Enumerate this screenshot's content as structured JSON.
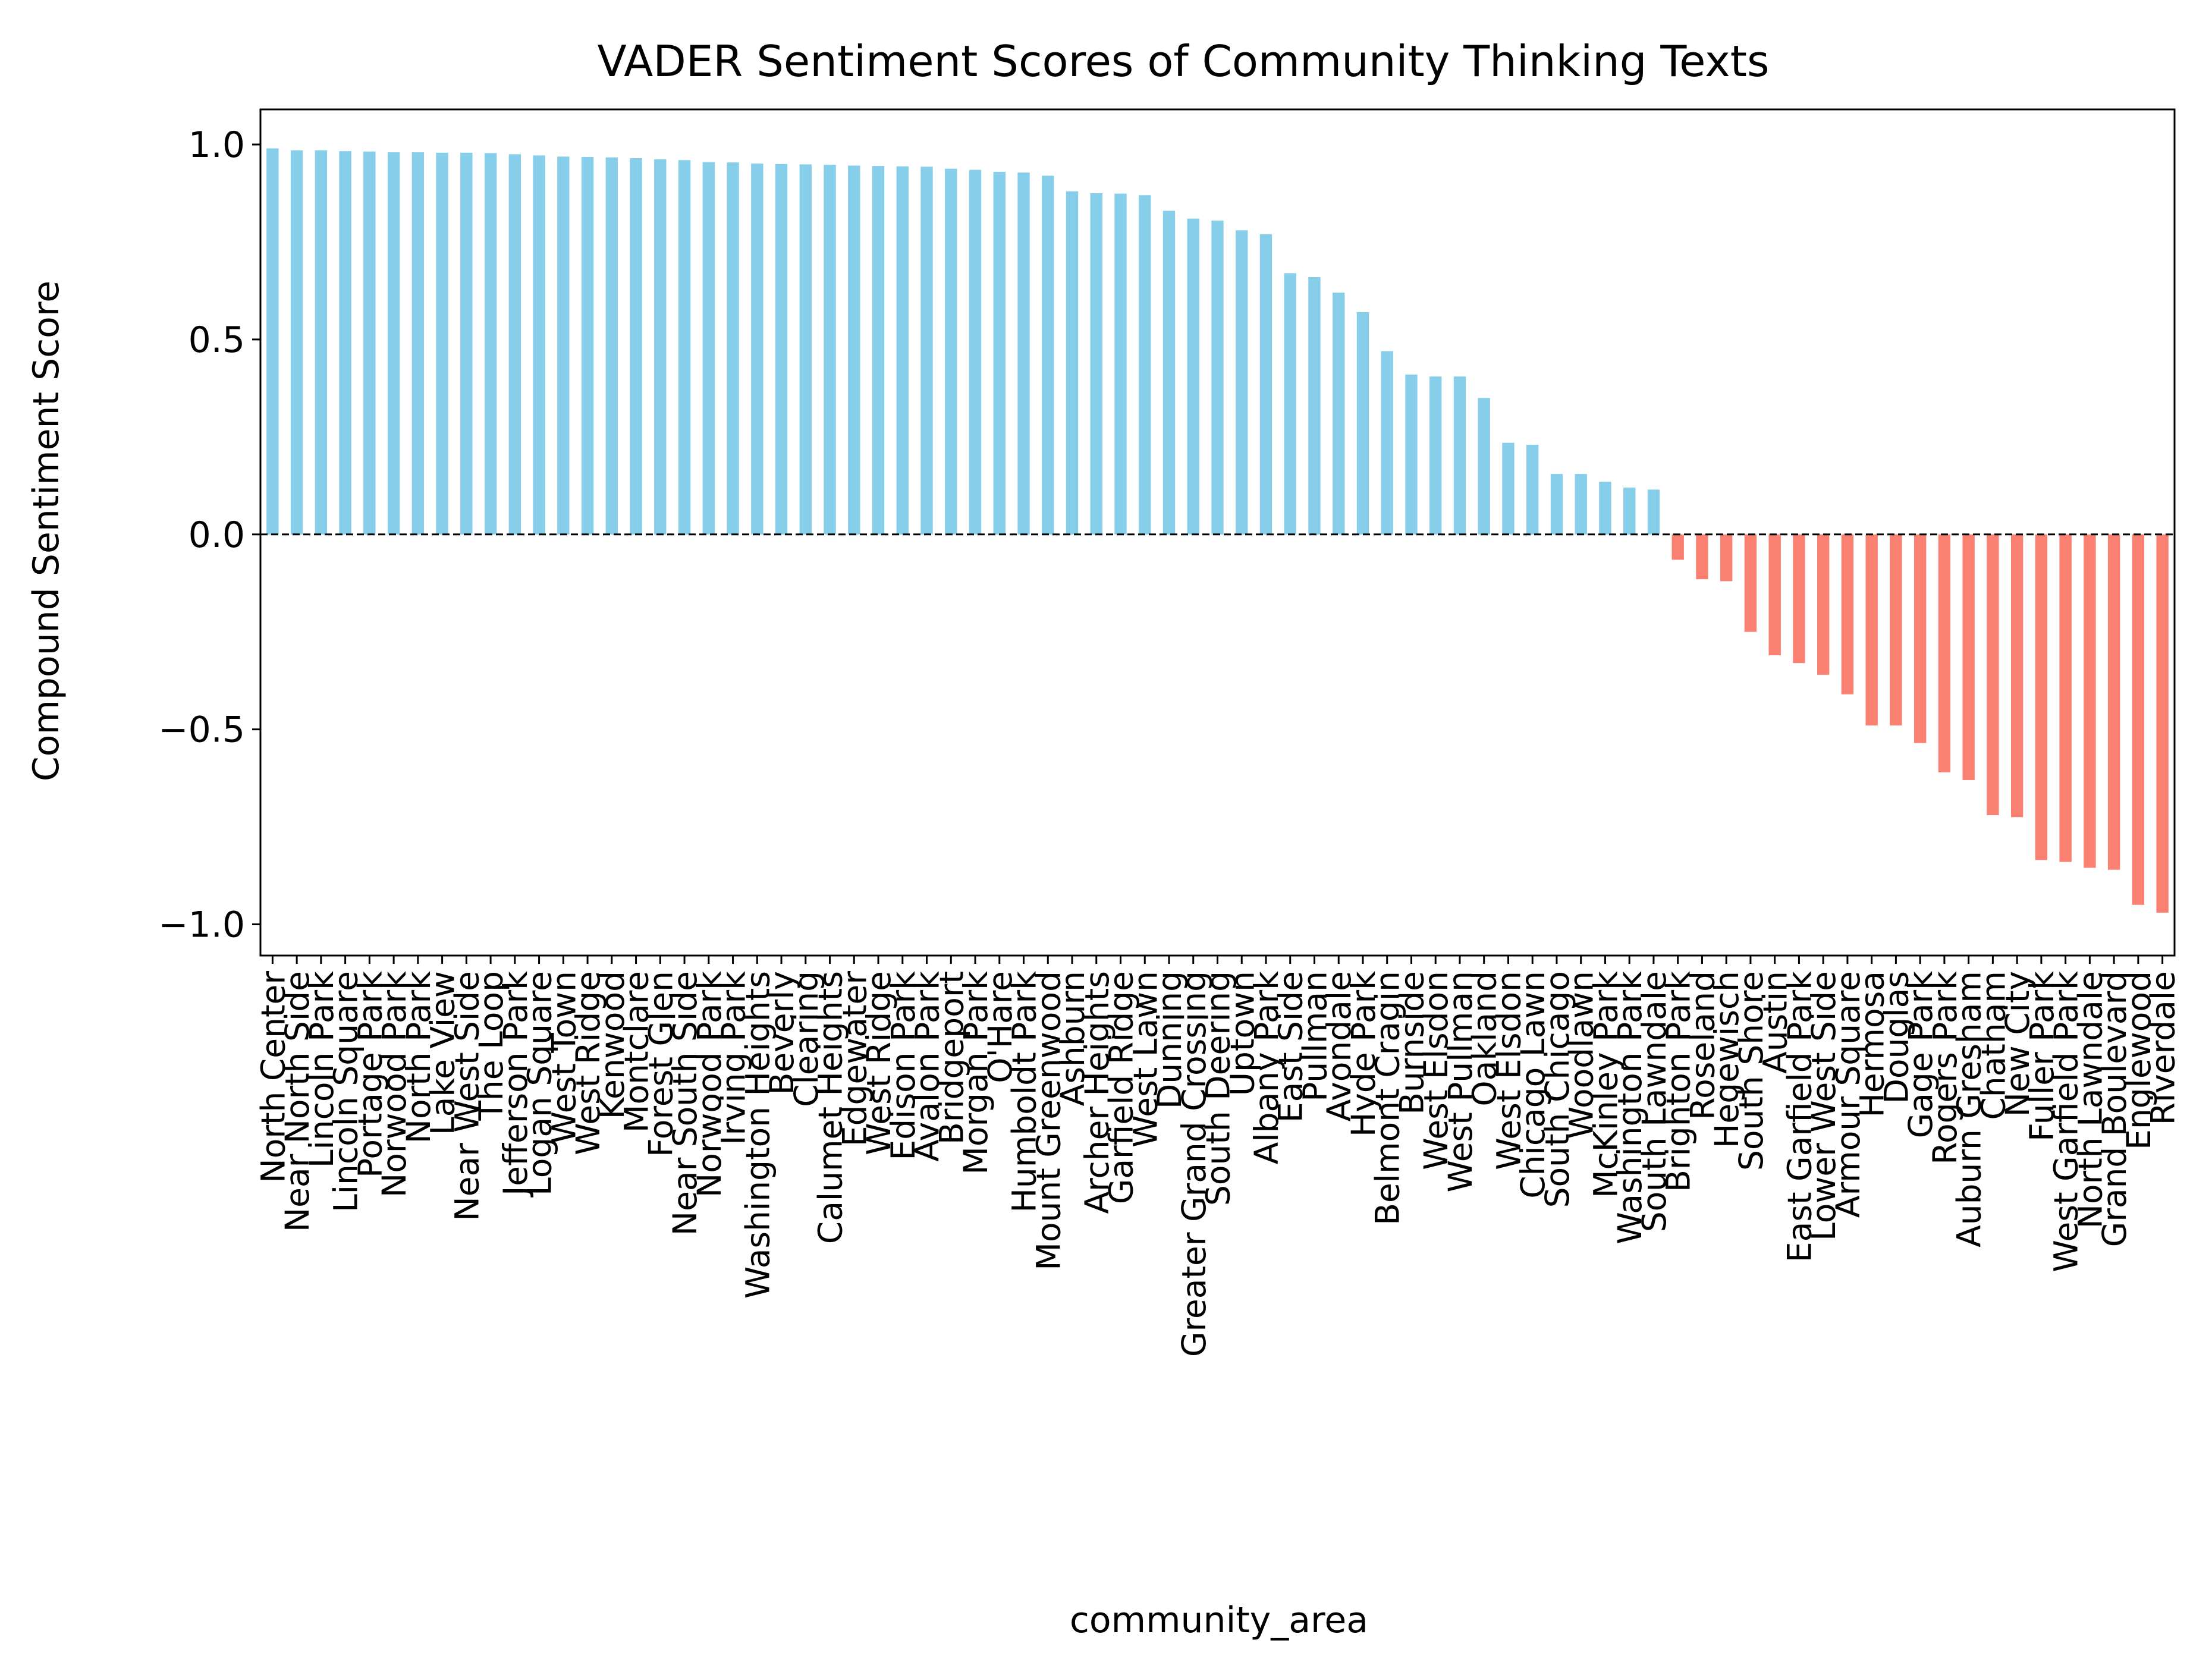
{
  "chart_data": {
    "type": "bar",
    "title": "VADER Sentiment Scores of Community Thinking Texts",
    "xlabel": "community_area",
    "ylabel": "Compound Sentiment Score",
    "ylim": [
      -1.08,
      1.09
    ],
    "yticks": [
      1.0,
      0.5,
      0.0,
      -0.5,
      -1.0
    ],
    "ytick_labels": [
      "1.0",
      "0.5",
      "0.0",
      "−0.5",
      "−1.0"
    ],
    "grid": false,
    "legend": "none",
    "zero_line": "dashed",
    "colors": {
      "positive": "#87ceeb",
      "negative": "#fa8072",
      "axis": "#000000",
      "zero_line": "#000000"
    },
    "categories": [
      "North Center",
      "Near North Side",
      "Lincoln Park",
      "Lincoln Square",
      "Portage Park",
      "Norwood Park",
      "North Park",
      "Lake View",
      "Near West Side",
      "The Loop",
      "Jefferson Park",
      "Logan Square",
      "West Town",
      "West Ridge",
      "Kenwood",
      "Montclare",
      "Forest Glen",
      "Near South Side",
      "Norwood Park",
      "Irving Park",
      "Washington Heights",
      "Beverly",
      "Clearing",
      "Calumet Heights",
      "Edgewater",
      "West Ridge",
      "Edison Park",
      "Avalon Park",
      "Bridgeport",
      "Morgan Park",
      "O'Hare",
      "Humboldt Park",
      "Mount Greenwood",
      "Ashburn",
      "Archer Heights",
      "Garfield Ridge",
      "West Lawn",
      "Dunning",
      "Greater Grand Crossing",
      "South Deering",
      "Uptown",
      "Albany Park",
      "East Side",
      "Pullman",
      "Avondale",
      "Hyde Park",
      "Belmont Cragin",
      "Burnside",
      "West Elsdon",
      "West Pullman",
      "Oakland",
      "West Elsdon",
      "Chicago Lawn",
      "South Chicago",
      "Woodlawn",
      "McKinley Park",
      "Washington Park",
      "South Lawndale",
      "Brighton Park",
      "Roseland",
      "Hegewisch",
      "South Shore",
      "Austin",
      "East Garfield Park",
      "Lower West Side",
      "Armour Square",
      "Hermosa",
      "Douglas",
      "Gage Park",
      "Rogers Park",
      "Auburn Gresham",
      "Chatham",
      "New City",
      "Fuller Park",
      "West Garfield Park",
      "North Lawndale",
      "Grand Boulevard",
      "Englewood",
      "Riverdale"
    ],
    "values": [
      0.99,
      0.985,
      0.985,
      0.983,
      0.982,
      0.98,
      0.98,
      0.979,
      0.979,
      0.978,
      0.975,
      0.972,
      0.969,
      0.968,
      0.967,
      0.965,
      0.962,
      0.96,
      0.955,
      0.954,
      0.951,
      0.95,
      0.949,
      0.948,
      0.946,
      0.945,
      0.944,
      0.943,
      0.938,
      0.935,
      0.93,
      0.928,
      0.92,
      0.88,
      0.875,
      0.874,
      0.87,
      0.83,
      0.81,
      0.805,
      0.78,
      0.77,
      0.67,
      0.66,
      0.62,
      0.57,
      0.47,
      0.41,
      0.405,
      0.405,
      0.35,
      0.235,
      0.23,
      0.155,
      0.155,
      0.135,
      0.12,
      0.115,
      -0.065,
      -0.115,
      -0.12,
      -0.25,
      -0.31,
      -0.33,
      -0.36,
      -0.41,
      -0.49,
      -0.49,
      -0.535,
      -0.61,
      -0.63,
      -0.72,
      -0.725,
      -0.835,
      -0.84,
      -0.855,
      -0.86,
      -0.95,
      -0.97
    ]
  }
}
